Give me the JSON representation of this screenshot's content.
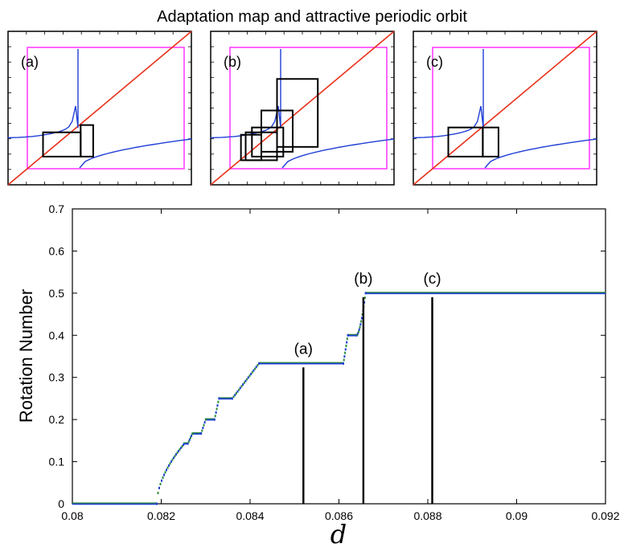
{
  "figure_title": "Adaptation map and attractive periodic orbit",
  "colors": {
    "magenta": "#ff33ff",
    "blue": "#1f3fd6",
    "red": "#e8311a",
    "green": "#2e8b3a",
    "black": "#000000"
  },
  "panels": [
    {
      "label": "(a)"
    },
    {
      "label": "(b)"
    },
    {
      "label": "(c)"
    }
  ],
  "chart_data": {
    "type": "scatter",
    "title": "",
    "xlabel": "d",
    "ylabel": "Rotation Number",
    "xlim": [
      0.08,
      0.092
    ],
    "ylim": [
      0,
      0.7
    ],
    "x_ticks": [
      "0.08",
      "0.082",
      "0.084",
      "0.086",
      "0.088",
      "0.09",
      "0.092"
    ],
    "y_ticks": [
      "0",
      "0.1",
      "0.2",
      "0.3",
      "0.4",
      "0.5",
      "0.6",
      "0.7"
    ],
    "plateaus": [
      {
        "x_start": 0.08,
        "x_end": 0.0819,
        "y": 0.0
      },
      {
        "x_start": 0.0825,
        "x_end": 0.0826,
        "y": 0.1429
      },
      {
        "x_start": 0.0827,
        "x_end": 0.0829,
        "y": 0.1667
      },
      {
        "x_start": 0.083,
        "x_end": 0.0832,
        "y": 0.2
      },
      {
        "x_start": 0.0833,
        "x_end": 0.0836,
        "y": 0.25
      },
      {
        "x_start": 0.0842,
        "x_end": 0.0861,
        "y": 0.3333
      },
      {
        "x_start": 0.0862,
        "x_end": 0.0864,
        "y": 0.4
      },
      {
        "x_start": 0.0866,
        "x_end": 0.092,
        "y": 0.5
      }
    ],
    "markers": [
      {
        "label": "(a)",
        "x": 0.0852,
        "y": 0.3333
      },
      {
        "label": "(b)",
        "x": 0.08655,
        "y": 0.5
      },
      {
        "label": "(c)",
        "x": 0.0881,
        "y": 0.5
      }
    ]
  }
}
